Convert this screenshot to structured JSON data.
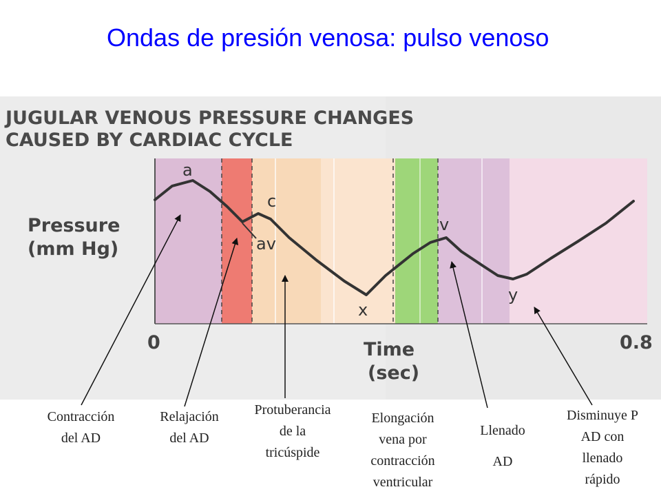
{
  "slide": {
    "title": "Ondas de presión venosa: pulso venoso"
  },
  "figure": {
    "heading_line1": "JUGULAR VENOUS PRESSURE CHANGES",
    "heading_line2": "CAUSED BY CARDIAC CYCLE",
    "y_axis_line1": "Pressure",
    "y_axis_line2": "(mm Hg)",
    "x_axis_line1": "Time",
    "x_axis_line2": "(sec)",
    "x_start": "0",
    "x_end": "0.8",
    "wave_labels": {
      "a": "a",
      "c": "c",
      "av": "av",
      "v": "v",
      "x": "x",
      "y": "y"
    },
    "phase_colors": {
      "atrial_contraction": "#dcbcd6",
      "atrial_relaxation": "#ee7b72",
      "tricuspid_bulge": "#f8d9b8",
      "ventricular_contraction": "#fbe4cf",
      "atrial_filling_green": "#9ed679",
      "atrial_filling": "#ddc0da",
      "rapid_filling": "#f4dbe7"
    }
  },
  "annotations": [
    {
      "id": "contraccion",
      "text": "Contracción\ndel AD"
    },
    {
      "id": "relajacion",
      "text": "Relajación\ndel AD"
    },
    {
      "id": "protuberancia",
      "text": "Protuberancia\nde la\ntricúspide"
    },
    {
      "id": "elongacion",
      "text": "Elongación\nvena por\ncontracción\nventricular"
    },
    {
      "id": "llenado",
      "text": "Llenado\nAD"
    },
    {
      "id": "disminuye",
      "text": "Disminuye P\nAD con\nllenado\nrápido"
    }
  ]
}
